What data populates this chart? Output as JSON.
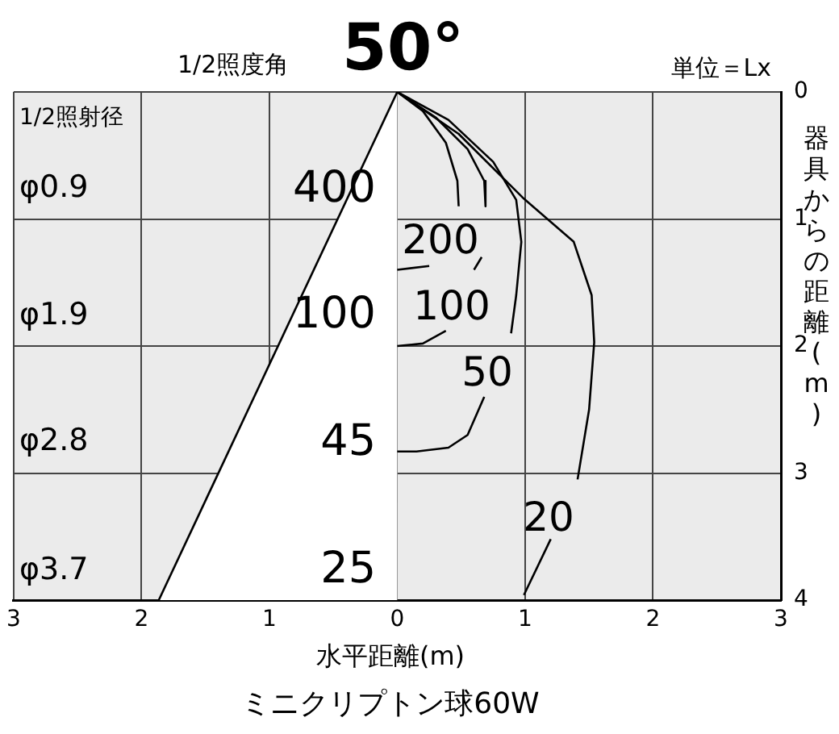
{
  "chart_data": {
    "type": "line",
    "title": "50°",
    "subtitle": "1/2照度角",
    "xlabel": "水平距離(m)",
    "ylabel": "器具からの距離(m)",
    "xlim": [
      -3,
      3
    ],
    "xticks": [
      {
        "value": -3,
        "label": "3"
      },
      {
        "value": -2,
        "label": "2"
      },
      {
        "value": -1,
        "label": "1"
      },
      0,
      1,
      2,
      3
    ],
    "ylim": [
      4,
      0
    ],
    "yticks": [
      0,
      1,
      2,
      3,
      4
    ],
    "grid": true,
    "legend": false,
    "series": [
      {
        "type": "area",
        "color": "#000000",
        "x": [
          0,
          -1.865
        ],
        "values": [
          0,
          4
        ]
      },
      {
        "color": "#000000",
        "x": [
          0,
          0.2,
          0.38,
          0.47,
          0.48,
          null,
          0.25,
          0
        ],
        "values": [
          0,
          0.15,
          0.4,
          0.7,
          0.9,
          null,
          1.37,
          1.4
        ]
      },
      {
        "color": "#000000",
        "x": [
          0,
          0.3,
          0.55,
          0.68,
          0.69,
          null,
          0.66,
          0.6,
          null,
          0.38,
          0.2,
          0
        ],
        "values": [
          0,
          0.2,
          0.45,
          0.7,
          0.9,
          null,
          1.3,
          1.4,
          null,
          1.88,
          1.98,
          2.0
        ]
      },
      {
        "color": "#000000",
        "x": [
          0,
          0.4,
          0.75,
          0.93,
          0.97,
          0.93,
          0.89,
          null,
          0.68,
          0.55,
          0.4,
          0.15,
          0
        ],
        "values": [
          0,
          0.22,
          0.55,
          0.85,
          1.18,
          1.6,
          1.9,
          null,
          2.4,
          2.7,
          2.8,
          2.83,
          2.83
        ]
      },
      {
        "color": "#000000",
        "x": [
          0,
          0.48,
          0.99,
          1.38,
          1.52,
          1.54,
          1.5,
          1.41,
          null,
          1.2,
          0.99
        ],
        "values": [
          0,
          0.33,
          0.84,
          1.18,
          1.6,
          1.97,
          2.5,
          3.05,
          null,
          3.52,
          3.96
        ]
      }
    ],
    "annotations": [
      "単位＝Lx",
      "ミニクリプトン球60W",
      "1/2照射径",
      "φ0.9",
      "φ1.9",
      "φ2.8",
      "φ3.7",
      "400",
      "100",
      "45",
      "25",
      "200",
      "100",
      "50",
      "20"
    ]
  }
}
